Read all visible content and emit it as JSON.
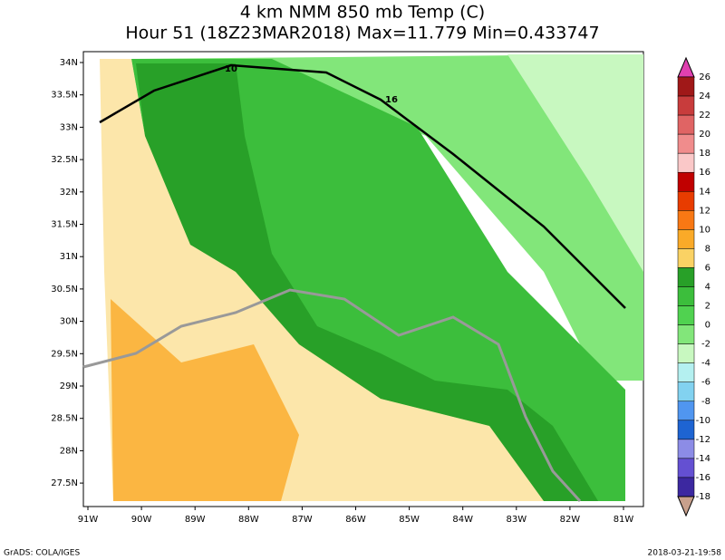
{
  "title": {
    "line1": "4 km NMM 850 mb Temp (C)",
    "line2": "Hour 51 (18Z23MAR2018) Max=11.779 Min=0.433747"
  },
  "lat_labels": [
    "34N",
    "33.5N",
    "33N",
    "32.5N",
    "32N",
    "31.5N",
    "31N",
    "30.5N",
    "30N",
    "29.5N",
    "29N",
    "28.5N",
    "28N",
    "27.5N"
  ],
  "lon_labels": [
    "91W",
    "90W",
    "89W",
    "88W",
    "87W",
    "86W",
    "85W",
    "84W",
    "83W",
    "82W",
    "81W"
  ],
  "road_labels": [
    "10",
    "16"
  ],
  "colorbar": {
    "labels": [
      26,
      24,
      22,
      20,
      18,
      16,
      14,
      12,
      10,
      8,
      6,
      4,
      2,
      0,
      -2,
      -4,
      -6,
      -8,
      -10,
      -12,
      -14,
      -16,
      -18
    ],
    "colors": [
      "#e040b0",
      "#a01818",
      "#c83c3c",
      "#e06464",
      "#f08c8c",
      "#fac8c8",
      "#c00000",
      "#e83c00",
      "#f87814",
      "#faaa28",
      "#fad264",
      "#28a028",
      "#3cbe3c",
      "#50d250",
      "#82e67a",
      "#c8f8c0",
      "#b4f0f0",
      "#82d2f0",
      "#5096f0",
      "#1e64d2",
      "#8c8ce6",
      "#6450d2",
      "#3c28a0",
      "#c8a08c"
    ]
  },
  "footer": {
    "left": "GrADS: COLA/IGES",
    "right": "2018-03-21-19:58"
  }
}
